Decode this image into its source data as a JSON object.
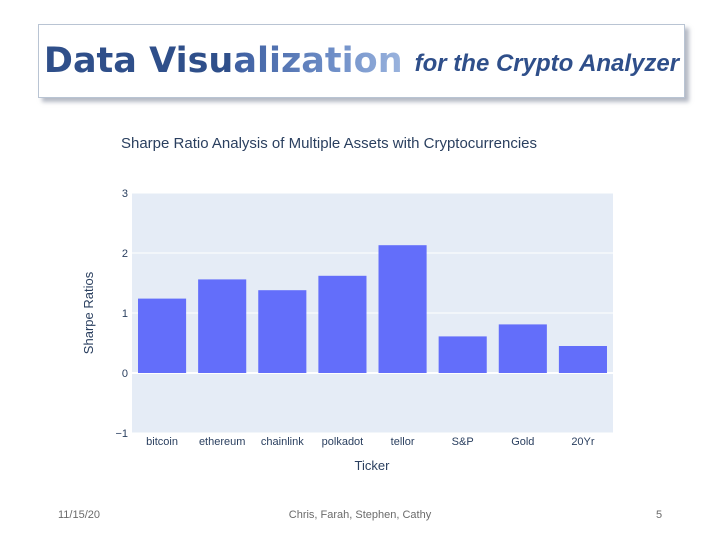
{
  "slide": {
    "title_main_part1": "Data Visu",
    "title_main_part2": "alization",
    "title_sub": "for the Crypto Analyzer",
    "footer_date": "11/15/20",
    "footer_authors": "Chris, Farah, Stephen, Cathy",
    "page_number": "5"
  },
  "colors": {
    "bar": "#636efa",
    "plot_bg": "#e5ecf6",
    "grid": "#ffffff",
    "title_text": "#2f4f8a"
  },
  "chart_data": {
    "type": "bar",
    "title": "Sharpe Ratio Analysis of Multiple Assets with Cryptocurrencies",
    "xlabel": "Ticker",
    "ylabel": "Sharpe Ratios",
    "categories": [
      "bitcoin",
      "ethereum",
      "chainlink",
      "polkadot",
      "tellor",
      "S&P",
      "Gold",
      "20Yr"
    ],
    "values": [
      1.24,
      1.56,
      1.38,
      1.62,
      2.13,
      0.61,
      0.81,
      0.45
    ],
    "ylim": [
      -1,
      3
    ],
    "yticks": [
      {
        "value": 3,
        "label": "3"
      },
      {
        "value": 2,
        "label": "2"
      },
      {
        "value": 1,
        "label": "1"
      },
      {
        "value": 0,
        "label": "0"
      },
      {
        "value": -1,
        "label": "−1"
      }
    ],
    "grid": true,
    "legend": "none"
  }
}
